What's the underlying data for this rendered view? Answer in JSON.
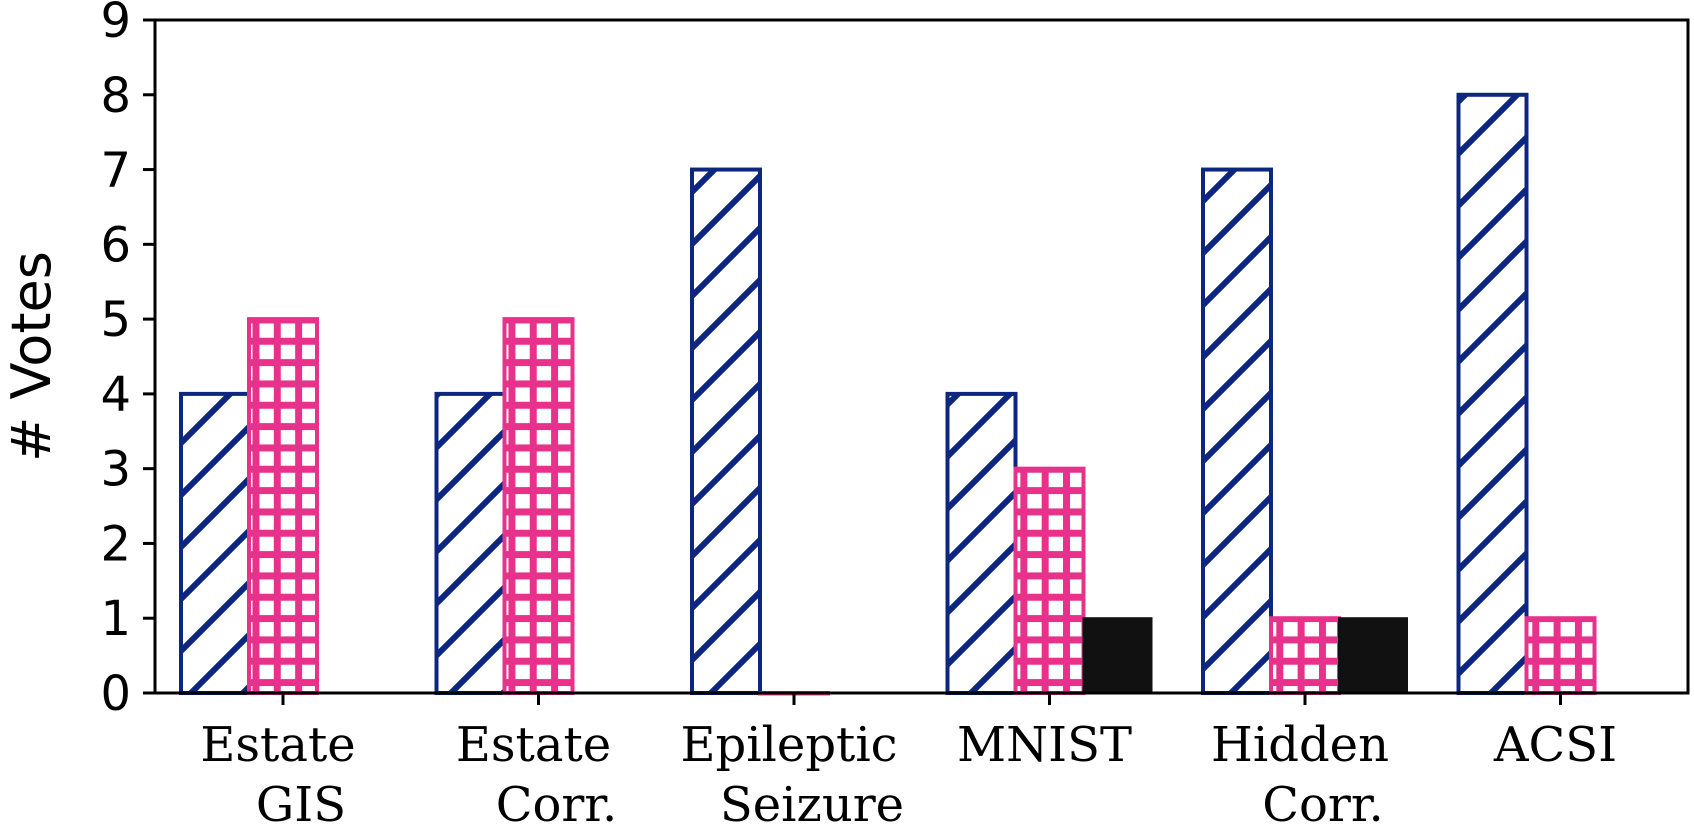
{
  "chart_data": {
    "type": "bar",
    "title": "",
    "xlabel": "",
    "ylabel": "# Votes",
    "ylim": [
      0,
      9
    ],
    "yticks": [
      "0",
      "1",
      "2",
      "3",
      "4",
      "5",
      "6",
      "7",
      "8",
      "9"
    ],
    "grid": false,
    "categories": [
      {
        "line1": "Estate",
        "line2": "GIS"
      },
      {
        "line1": "Estate",
        "line2": "Corr."
      },
      {
        "line1": "Epileptic",
        "line2": "Seizure"
      },
      {
        "line1": "MNIST",
        "line2": ""
      },
      {
        "line1": "Hidden",
        "line2": "Corr."
      },
      {
        "line1": "ACSI",
        "line2": ""
      }
    ],
    "series": [
      {
        "name": "series-1",
        "pattern": "diagonal-hatch",
        "color": "#0d2680",
        "values": [
          4,
          4,
          7,
          4,
          7,
          8
        ]
      },
      {
        "name": "series-2",
        "pattern": "grid-hatch",
        "color": "#e8318a",
        "values": [
          5,
          5,
          0,
          3,
          1,
          1
        ]
      },
      {
        "name": "series-3",
        "pattern": "solid",
        "color": "#111111",
        "values": [
          0,
          0,
          0,
          1,
          1,
          0
        ]
      }
    ]
  }
}
